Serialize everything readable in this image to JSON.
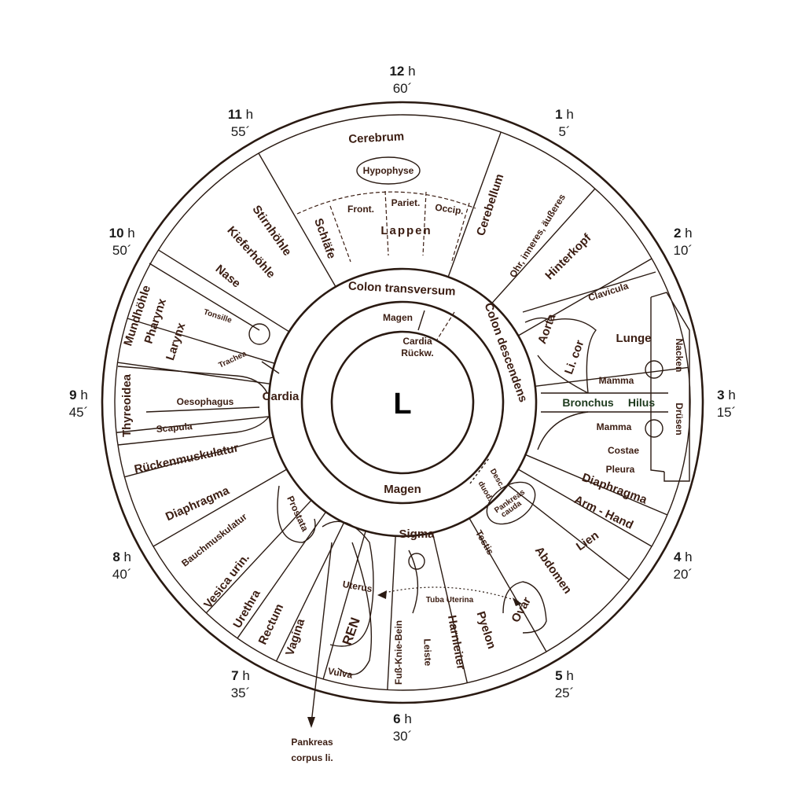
{
  "clock": [
    {
      "h": "12",
      "m": "60´"
    },
    {
      "h": "1",
      "m": "5´"
    },
    {
      "h": "2",
      "m": "10´"
    },
    {
      "h": "3",
      "m": "15´"
    },
    {
      "h": "4",
      "m": "20´"
    },
    {
      "h": "5",
      "m": "25´"
    },
    {
      "h": "6",
      "m": "30´"
    },
    {
      "h": "7",
      "m": "35´"
    },
    {
      "h": "8",
      "m": "40´"
    },
    {
      "h": "9",
      "m": "45´"
    },
    {
      "h": "10",
      "m": "50´"
    },
    {
      "h": "11",
      "m": "55´"
    }
  ],
  "hour_suffix": "h",
  "center_label": "L",
  "middle_ring": {
    "colon_transversum": "Colon transversum",
    "colon_descendens": "Colon descendens",
    "cardia": "Cardia",
    "magen": "Magen",
    "sigma": "Sigma",
    "desc": "Desc.",
    "duod": "duod.",
    "pankreas": "Pankreas",
    "cauda": "cauda"
  },
  "inner_ring": {
    "magen": "Magen",
    "cardia": "Cardia",
    "rueckw": "Rückw."
  },
  "outer": {
    "cerebrum": "Cerebrum",
    "hypophyse": "Hypophyse",
    "front": "Front.",
    "pariet": "Pariet.",
    "occip": "Occip.",
    "lappen": "Lappen",
    "schlaefe": "Schläfe",
    "cerebellum": "Cerebellum",
    "ohr": "Ohr, inneres, äußeres",
    "hinterkopf": "Hinterkopf",
    "clavicula": "Clavicula",
    "aorta": "Aorta",
    "li_cor": "Li. cor",
    "lunge": "Lunge",
    "nacken": "Nacken",
    "mamma1": "Mamma",
    "mamma2": "Mamma",
    "bronchus": "Bronchus",
    "hilus": "Hilus",
    "druesen": "Drüsen",
    "costae": "Costae",
    "pleura": "Pleura",
    "diaphragma_r": "Diaphragma",
    "arm_hand": "Arm - Hand",
    "lien": "Lien",
    "abdomen": "Abdomen",
    "ovar": "Ovar",
    "testis": "Testis",
    "pyelon": "Pyelon",
    "harnleiter": "Harnleiter",
    "leiste": "Leiste",
    "tuba": "Tuba Uterina",
    "fuss": "Fuß-Knie-Bein",
    "uterus": "Uterus",
    "ren": "REN",
    "vulva": "Vulva",
    "vagina": "Vagina",
    "rectum": "Rectum",
    "urethra": "Urethra",
    "vesica": "Vesica urin.",
    "bauch": "Bauchmuskulatur",
    "prostata": "Prostata",
    "diaphragma_l": "Diaphragma",
    "ruecken": "Rückenmuskulatur",
    "thyreoidea": "Thyreoidea",
    "scapula": "Scapula",
    "oesophagus": "Oesophagus",
    "trachea": "Trachea",
    "tonsille": "Tonsille",
    "mundhoehle": "Mundhöhle",
    "pharynx": "Pharynx",
    "larynx": "Larynx",
    "nase": "Nase",
    "kieferhoehle": "Kieferhöhle",
    "stirnhoehle": "Stirnhöhle"
  },
  "pointer": {
    "line1": "Pankreas",
    "line2": "corpus li."
  }
}
